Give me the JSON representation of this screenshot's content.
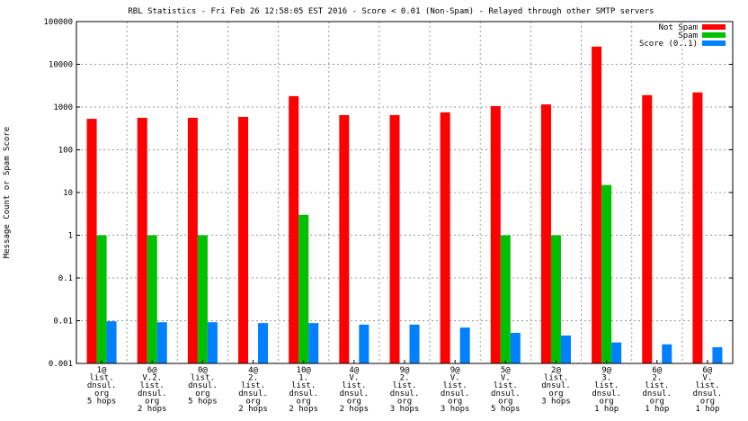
{
  "chart_data": {
    "type": "bar",
    "title": "RBL Statistics - Fri Feb 26 12:58:05 EST 2016 - Score < 0.01 (Non-Spam) - Relayed through other SMTP servers",
    "xlabel": "",
    "ylabel": "Message Count or Spam Score",
    "yscale": "log",
    "ylim": [
      0.001,
      100000
    ],
    "yticks": [
      "0.001",
      "0.01",
      "0.1",
      "1",
      "10",
      "100",
      "1000",
      "10000",
      "100000"
    ],
    "grid": true,
    "legend_position": "top-right",
    "categories": [
      [
        "1@",
        "list.",
        "dnsul.",
        "org",
        "5 hops"
      ],
      [
        "6@",
        "V.2.",
        "list.",
        "dnsul.",
        "org",
        "2 hops"
      ],
      [
        "0@",
        "list.",
        "dnsul.",
        "org",
        "5 hops"
      ],
      [
        "4@",
        "2.",
        "list.",
        "dnsul.",
        "org",
        "2 hops"
      ],
      [
        "10@",
        "1.",
        "list.",
        "dnsul.",
        "org",
        "2 hops"
      ],
      [
        "4@",
        "V.",
        "list.",
        "dnsul.",
        "org",
        "2 hops"
      ],
      [
        "9@",
        "2.",
        "list.",
        "dnsul.",
        "org",
        "3 hops"
      ],
      [
        "9@",
        "V.",
        "list.",
        "dnsul.",
        "org",
        "3 hops"
      ],
      [
        "5@",
        "V.",
        "list.",
        "dnsul.",
        "org",
        "5 hops"
      ],
      [
        "2@",
        "list.",
        "dnsul.",
        "org",
        "3 hops"
      ],
      [
        "9@",
        "3.",
        "list.",
        "dnsul.",
        "org",
        "1 hop"
      ],
      [
        "6@",
        "2.",
        "list.",
        "dnsul.",
        "org",
        "1 hop"
      ],
      [
        "6@",
        "V.",
        "list.",
        "dnsul.",
        "org",
        "1 hop"
      ]
    ],
    "series": [
      {
        "name": "Not Spam",
        "color": "#ff0000",
        "values": [
          530,
          560,
          560,
          590,
          1800,
          650,
          650,
          750,
          1050,
          1150,
          26000,
          1900,
          2200
        ]
      },
      {
        "name": "Spam",
        "color": "#00c000",
        "values": [
          1,
          1,
          1,
          null,
          3,
          null,
          null,
          null,
          1,
          1,
          15,
          null,
          null
        ]
      },
      {
        "name": "Score (0..1)",
        "color": "#0080ff",
        "values": [
          0.0097,
          0.0092,
          0.0092,
          0.0088,
          0.0088,
          0.0081,
          0.0081,
          0.0069,
          0.0052,
          0.0045,
          0.0031,
          0.0028,
          0.0024
        ]
      }
    ]
  }
}
